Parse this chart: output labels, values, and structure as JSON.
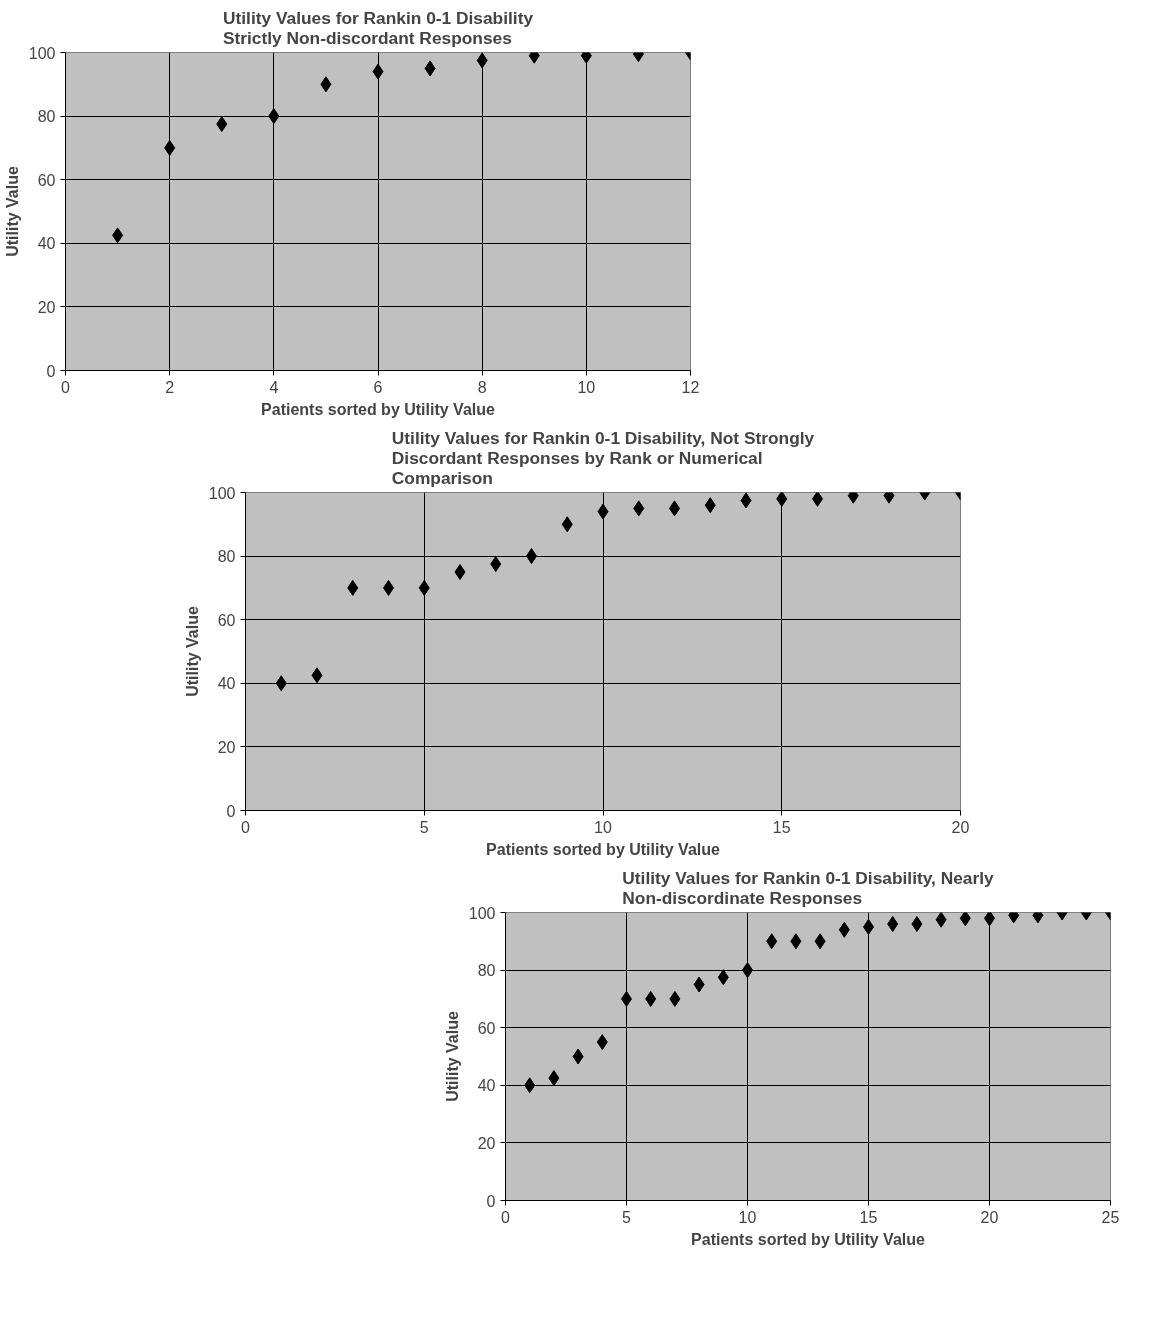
{
  "chart_data": [
    {
      "type": "scatter",
      "title": "Utility Values for Rankin 0-1 Disability\nStrictly Non-discordant Responses",
      "xlabel": "Patients sorted by Utility Value",
      "ylabel": "Utility Value",
      "x": [
        1,
        2,
        3,
        4,
        5,
        6,
        7,
        8,
        9,
        10,
        11,
        12
      ],
      "series": [
        {
          "color": "#000000",
          "values": [
            42.5,
            70,
            77.5,
            80,
            90,
            94,
            95,
            97.5,
            99,
            99,
            99.5,
            100
          ]
        }
      ],
      "xlim": [
        0,
        12
      ],
      "xticks": [
        0,
        2,
        4,
        6,
        8,
        10,
        12
      ],
      "ylim": [
        0,
        100
      ],
      "yticks": [
        0,
        20,
        40,
        60,
        80,
        100
      ],
      "grid": true,
      "marker": "diamond"
    },
    {
      "type": "scatter",
      "title": "Utility Values for Rankin 0-1 Disability, Not Strongly\nDiscordant Responses by Rank or Numerical\nComparison",
      "xlabel": "Patients sorted by Utility Value",
      "ylabel": "Utility Value",
      "x": [
        1,
        2,
        3,
        4,
        5,
        6,
        7,
        8,
        9,
        10,
        11,
        12,
        13,
        14,
        15,
        16,
        17,
        18,
        19,
        20
      ],
      "series": [
        {
          "color": "#000000",
          "values": [
            40,
            42.5,
            70,
            70,
            70,
            75,
            77.5,
            80,
            90,
            94,
            95,
            95,
            96,
            97.5,
            98,
            98,
            99,
            99,
            100,
            100
          ]
        }
      ],
      "xlim": [
        0,
        20
      ],
      "xticks": [
        0,
        5,
        10,
        15,
        20
      ],
      "ylim": [
        0,
        100
      ],
      "yticks": [
        0,
        20,
        40,
        60,
        80,
        100
      ],
      "grid": true,
      "marker": "diamond"
    },
    {
      "type": "scatter",
      "title": "Utility Values for Rankin 0-1 Disability, Nearly\nNon-discordinate Responses",
      "xlabel": "Patients sorted by Utility Value",
      "ylabel": "Utility Value",
      "x": [
        1,
        2,
        3,
        4,
        5,
        6,
        7,
        8,
        9,
        10,
        11,
        12,
        13,
        14,
        15,
        16,
        17,
        18,
        19,
        20,
        21,
        22,
        23,
        24,
        25
      ],
      "series": [
        {
          "color": "#000000",
          "values": [
            40,
            42.5,
            50,
            55,
            70,
            70,
            70,
            75,
            77.5,
            80,
            90,
            90,
            90,
            94,
            95,
            96,
            96,
            97.5,
            98,
            98,
            99,
            99,
            100,
            100,
            100
          ]
        }
      ],
      "xlim": [
        0,
        25
      ],
      "xticks": [
        0,
        5,
        10,
        15,
        20,
        25
      ],
      "ylim": [
        0,
        100
      ],
      "yticks": [
        0,
        20,
        40,
        60,
        80,
        100
      ],
      "grid": true,
      "marker": "diamond"
    }
  ]
}
